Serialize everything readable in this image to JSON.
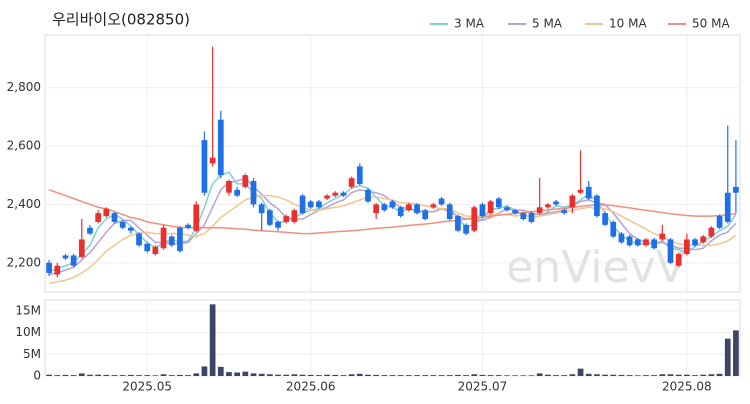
{
  "chart_data": {
    "type": "candlestick",
    "title": "우리바이오(082850)",
    "watermark": "enVievV",
    "categories": [
      null,
      null,
      null,
      null,
      null,
      null,
      null,
      null,
      null,
      null,
      null,
      null,
      "2025.05",
      null,
      null,
      null,
      null,
      null,
      null,
      null,
      null,
      null,
      null,
      null,
      null,
      null,
      null,
      null,
      null,
      null,
      null,
      null,
      "2025.06",
      null,
      null,
      null,
      null,
      null,
      null,
      null,
      null,
      null,
      null,
      null,
      null,
      null,
      null,
      null,
      null,
      null,
      null,
      null,
      null,
      "2025.07",
      null,
      null,
      null,
      null,
      null,
      null,
      null,
      null,
      null,
      null,
      null,
      null,
      null,
      null,
      null,
      null,
      null,
      null,
      null,
      null,
      null,
      null,
      null,
      null,
      "2025.08",
      null,
      null,
      null,
      null,
      null,
      null
    ],
    "open": [
      2200,
      2160,
      2225,
      2225,
      2220,
      2320,
      2340,
      2360,
      2370,
      2340,
      2320,
      2300,
      2265,
      2230,
      2250,
      2290,
      2320,
      2330,
      2310,
      2620,
      2540,
      2690,
      2440,
      2450,
      2460,
      2480,
      2400,
      2380,
      2340,
      2340,
      2340,
      2430,
      2410,
      2410,
      2420,
      2430,
      2440,
      2460,
      2530,
      2450,
      2370,
      2400,
      2410,
      2390,
      2380,
      2400,
      2380,
      2390,
      2420,
      2400,
      2360,
      2330,
      2310,
      2400,
      2370,
      2420,
      2390,
      2380,
      2370,
      2370,
      2370,
      2390,
      2410,
      2380,
      2390,
      2440,
      2460,
      2430,
      2370,
      2340,
      2300,
      2290,
      2280,
      2260,
      2280,
      2280,
      2280,
      2190,
      2230,
      2280,
      2270,
      2290,
      2360,
      2440,
      2460
    ],
    "high": [
      2210,
      2200,
      2230,
      2230,
      2350,
      2330,
      2380,
      2390,
      2375,
      2345,
      2325,
      2305,
      2270,
      2260,
      2330,
      2295,
      2325,
      2335,
      2410,
      2650,
      2940,
      2720,
      2485,
      2460,
      2505,
      2490,
      2405,
      2385,
      2345,
      2365,
      2385,
      2435,
      2415,
      2415,
      2435,
      2445,
      2445,
      2495,
      2540,
      2455,
      2405,
      2405,
      2415,
      2395,
      2405,
      2405,
      2385,
      2405,
      2425,
      2405,
      2365,
      2335,
      2395,
      2405,
      2415,
      2425,
      2395,
      2385,
      2375,
      2375,
      2490,
      2405,
      2415,
      2385,
      2435,
      2585,
      2480,
      2435,
      2375,
      2345,
      2305,
      2295,
      2285,
      2285,
      2285,
      2330,
      2285,
      2235,
      2300,
      2285,
      2295,
      2325,
      2365,
      2670,
      2620
    ],
    "low": [
      2155,
      2150,
      2210,
      2185,
      2215,
      2295,
      2335,
      2355,
      2335,
      2315,
      2300,
      2255,
      2235,
      2225,
      2245,
      2255,
      2235,
      2315,
      2305,
      2430,
      2530,
      2490,
      2430,
      2425,
      2455,
      2390,
      2310,
      2325,
      2310,
      2335,
      2335,
      2365,
      2385,
      2385,
      2415,
      2425,
      2425,
      2455,
      2465,
      2405,
      2350,
      2375,
      2385,
      2355,
      2375,
      2365,
      2345,
      2385,
      2395,
      2345,
      2305,
      2295,
      2305,
      2355,
      2365,
      2385,
      2375,
      2365,
      2345,
      2335,
      2365,
      2385,
      2395,
      2365,
      2370,
      2435,
      2415,
      2355,
      2325,
      2285,
      2265,
      2255,
      2255,
      2255,
      2245,
      2275,
      2195,
      2185,
      2225,
      2255,
      2265,
      2285,
      2315,
      2335,
      2370
    ],
    "close": [
      2165,
      2190,
      2215,
      2190,
      2280,
      2300,
      2370,
      2385,
      2340,
      2320,
      2310,
      2260,
      2240,
      2255,
      2320,
      2260,
      2240,
      2320,
      2400,
      2440,
      2560,
      2500,
      2480,
      2430,
      2500,
      2400,
      2370,
      2330,
      2320,
      2360,
      2380,
      2370,
      2390,
      2390,
      2430,
      2440,
      2430,
      2490,
      2470,
      2410,
      2400,
      2380,
      2390,
      2360,
      2400,
      2370,
      2350,
      2400,
      2400,
      2350,
      2310,
      2300,
      2390,
      2360,
      2410,
      2390,
      2380,
      2370,
      2350,
      2340,
      2390,
      2400,
      2400,
      2370,
      2430,
      2450,
      2420,
      2360,
      2330,
      2290,
      2270,
      2260,
      2260,
      2280,
      2250,
      2300,
      2200,
      2230,
      2280,
      2260,
      2290,
      2320,
      2320,
      2340,
      2440
    ],
    "up_color": "#e8312f",
    "down_color": "#1f6fe6",
    "series": [
      {
        "name": "3 MA",
        "color": "#7fd0d0",
        "values": [
          2170,
          2180,
          2190,
          2200,
          2230,
          2260,
          2320,
          2350,
          2365,
          2350,
          2325,
          2295,
          2270,
          2250,
          2270,
          2280,
          2270,
          2275,
          2320,
          2390,
          2470,
          2500,
          2510,
          2470,
          2470,
          2440,
          2420,
          2370,
          2340,
          2340,
          2355,
          2370,
          2380,
          2385,
          2405,
          2420,
          2435,
          2455,
          2465,
          2455,
          2425,
          2395,
          2390,
          2375,
          2385,
          2375,
          2375,
          2375,
          2385,
          2385,
          2355,
          2320,
          2335,
          2350,
          2385,
          2385,
          2395,
          2380,
          2365,
          2355,
          2360,
          2375,
          2395,
          2390,
          2400,
          2415,
          2435,
          2410,
          2370,
          2325,
          2295,
          2275,
          2265,
          2265,
          2265,
          2275,
          2250,
          2245,
          2235,
          2255,
          2275,
          2290,
          2310,
          2325,
          2365
        ]
      },
      {
        "name": "5 MA",
        "color": "#b5a2d8",
        "values": [
          2160,
          2165,
          2175,
          2185,
          2210,
          2235,
          2270,
          2305,
          2335,
          2345,
          2345,
          2320,
          2295,
          2270,
          2270,
          2265,
          2265,
          2270,
          2300,
          2330,
          2390,
          2450,
          2475,
          2480,
          2490,
          2460,
          2435,
          2405,
          2385,
          2355,
          2350,
          2350,
          2365,
          2380,
          2390,
          2405,
          2415,
          2440,
          2450,
          2445,
          2440,
          2430,
          2410,
          2390,
          2385,
          2380,
          2375,
          2375,
          2385,
          2375,
          2360,
          2350,
          2350,
          2345,
          2355,
          2370,
          2385,
          2380,
          2380,
          2370,
          2365,
          2370,
          2375,
          2380,
          2395,
          2410,
          2415,
          2405,
          2400,
          2370,
          2335,
          2300,
          2280,
          2270,
          2265,
          2270,
          2260,
          2250,
          2250,
          2245,
          2250,
          2275,
          2295,
          2305,
          2335
        ]
      },
      {
        "name": "10 MA",
        "color": "#f3c58c",
        "values": [
          2130,
          2135,
          2140,
          2150,
          2165,
          2185,
          2210,
          2240,
          2260,
          2280,
          2295,
          2300,
          2305,
          2300,
          2300,
          2300,
          2300,
          2295,
          2290,
          2300,
          2325,
          2355,
          2375,
          2395,
          2415,
          2425,
          2430,
          2430,
          2425,
          2415,
          2400,
          2390,
          2380,
          2380,
          2385,
          2390,
          2395,
          2405,
          2415,
          2425,
          2425,
          2420,
          2415,
          2405,
          2405,
          2400,
          2395,
          2390,
          2385,
          2385,
          2370,
          2360,
          2360,
          2360,
          2365,
          2365,
          2365,
          2360,
          2365,
          2360,
          2360,
          2365,
          2370,
          2375,
          2380,
          2385,
          2390,
          2385,
          2385,
          2375,
          2360,
          2345,
          2330,
          2315,
          2300,
          2290,
          2275,
          2265,
          2260,
          2260,
          2260,
          2260,
          2265,
          2275,
          2295
        ]
      },
      {
        "name": "50 MA",
        "color": "#f0907a",
        "values": [
          2450,
          2440,
          2430,
          2420,
          2410,
          2400,
          2390,
          2385,
          2375,
          2365,
          2355,
          2350,
          2340,
          2335,
          2330,
          2325,
          2322,
          2320,
          2320,
          2320,
          2320,
          2320,
          2318,
          2316,
          2315,
          2312,
          2310,
          2308,
          2306,
          2304,
          2302,
          2300,
          2300,
          2302,
          2304,
          2306,
          2308,
          2310,
          2312,
          2315,
          2318,
          2320,
          2322,
          2325,
          2328,
          2330,
          2333,
          2336,
          2340,
          2343,
          2346,
          2350,
          2353,
          2356,
          2360,
          2363,
          2366,
          2369,
          2372,
          2375,
          2378,
          2381,
          2384,
          2387,
          2390,
          2393,
          2396,
          2398,
          2398,
          2396,
          2392,
          2388,
          2384,
          2380,
          2376,
          2372,
          2368,
          2365,
          2362,
          2360,
          2360,
          2360,
          2362,
          2364,
          2368
        ]
      }
    ],
    "ylim": [
      2100,
      2980
    ],
    "yticks": [
      {
        "value": 2200,
        "label": "2,200"
      },
      {
        "value": 2400,
        "label": "2,400"
      },
      {
        "value": 2600,
        "label": "2,600"
      },
      {
        "value": 2800,
        "label": "2,800"
      }
    ],
    "volume": {
      "color": "#3e4466",
      "values": [
        300000,
        200000,
        250000,
        200000,
        600000,
        300000,
        300000,
        250000,
        200000,
        200000,
        250000,
        200000,
        200000,
        150000,
        400000,
        200000,
        250000,
        200000,
        600000,
        2200000,
        16500000,
        2100000,
        900000,
        800000,
        1000000,
        600000,
        500000,
        400000,
        300000,
        300000,
        400000,
        300000,
        250000,
        200000,
        300000,
        250000,
        200000,
        400000,
        500000,
        300000,
        250000,
        200000,
        200000,
        200000,
        200000,
        200000,
        200000,
        200000,
        200000,
        200000,
        250000,
        200000,
        400000,
        250000,
        200000,
        200000,
        150000,
        150000,
        150000,
        150000,
        600000,
        300000,
        200000,
        200000,
        400000,
        1700000,
        500000,
        400000,
        300000,
        300000,
        250000,
        200000,
        150000,
        200000,
        200000,
        400000,
        400000,
        300000,
        300000,
        200000,
        300000,
        400000,
        500000,
        8600000,
        10500000
      ],
      "ylim": [
        0,
        17500000
      ],
      "yticks": [
        0,
        {
          "value": 5000000,
          "label": "5M"
        },
        {
          "value": 10000000,
          "label": "10M"
        },
        {
          "value": 15000000,
          "label": "15M"
        }
      ]
    },
    "grid": true
  }
}
